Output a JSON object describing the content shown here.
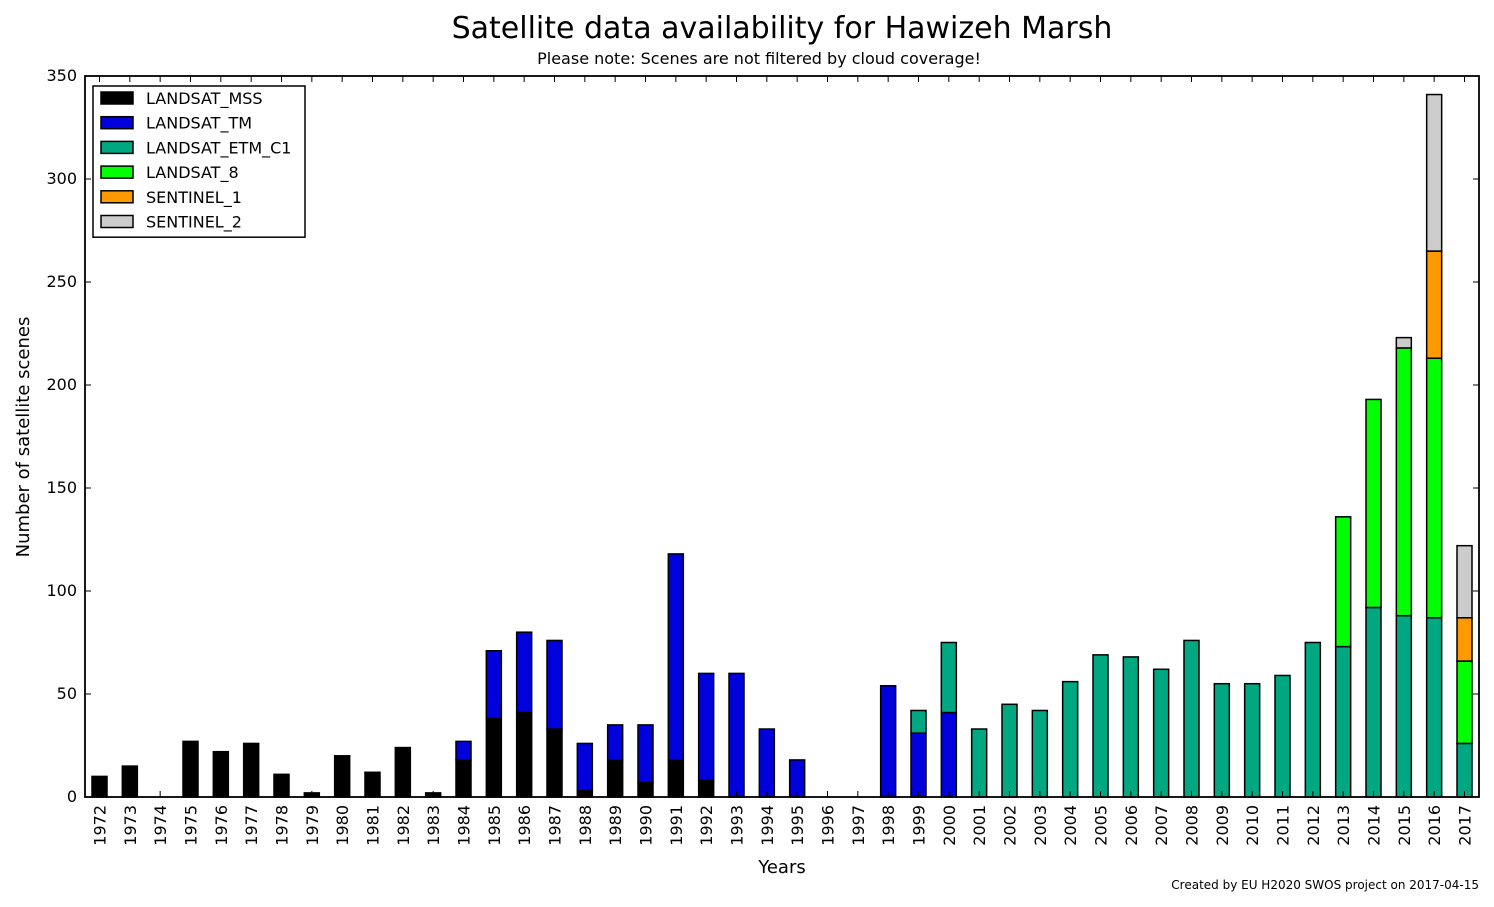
{
  "chart_data": {
    "type": "bar",
    "stacked": true,
    "title": "Satellite data availability for Hawizeh Marsh",
    "subtitle": "Please note: Scenes are not filtered by cloud coverage!",
    "xlabel": "Years",
    "ylabel": "Number of satellite scenes",
    "footnote": "Created by EU H2020 SWOS project on 2017-04-15",
    "ylim": [
      0,
      350
    ],
    "yticks": [
      0,
      50,
      100,
      150,
      200,
      250,
      300,
      350
    ],
    "grid": false,
    "legend_position": "top-left",
    "categories": [
      "1972",
      "1973",
      "1974",
      "1975",
      "1976",
      "1977",
      "1978",
      "1979",
      "1980",
      "1981",
      "1982",
      "1983",
      "1984",
      "1985",
      "1986",
      "1987",
      "1988",
      "1989",
      "1990",
      "1991",
      "1992",
      "1993",
      "1994",
      "1995",
      "1996",
      "1997",
      "1998",
      "1999",
      "2000",
      "2001",
      "2002",
      "2003",
      "2004",
      "2005",
      "2006",
      "2007",
      "2008",
      "2009",
      "2010",
      "2011",
      "2012",
      "2013",
      "2014",
      "2015",
      "2016",
      "2017"
    ],
    "series": [
      {
        "name": "LANDSAT_MSS",
        "color": "#000000",
        "values": [
          10,
          15,
          0,
          27,
          22,
          26,
          11,
          2,
          20,
          12,
          24,
          2,
          18,
          38,
          41,
          33,
          3,
          18,
          7,
          18,
          8,
          0,
          0,
          0,
          0,
          0,
          0,
          0,
          0,
          0,
          0,
          0,
          0,
          0,
          0,
          0,
          0,
          0,
          0,
          0,
          0,
          0,
          0,
          0,
          0,
          0
        ]
      },
      {
        "name": "LANDSAT_TM",
        "color": "#0000dd",
        "values": [
          0,
          0,
          0,
          0,
          0,
          0,
          0,
          0,
          0,
          0,
          0,
          0,
          9,
          33,
          39,
          43,
          23,
          17,
          28,
          100,
          52,
          60,
          33,
          18,
          0,
          0,
          54,
          31,
          41,
          0,
          0,
          0,
          0,
          0,
          0,
          0,
          0,
          0,
          0,
          0,
          0,
          0,
          0,
          0,
          0,
          0
        ]
      },
      {
        "name": "LANDSAT_ETM_C1",
        "color": "#00a882",
        "values": [
          0,
          0,
          0,
          0,
          0,
          0,
          0,
          0,
          0,
          0,
          0,
          0,
          0,
          0,
          0,
          0,
          0,
          0,
          0,
          0,
          0,
          0,
          0,
          0,
          0,
          0,
          0,
          11,
          34,
          33,
          45,
          42,
          56,
          69,
          68,
          62,
          76,
          55,
          55,
          59,
          75,
          73,
          92,
          88,
          87,
          26
        ]
      },
      {
        "name": "LANDSAT_8",
        "color": "#00ff00",
        "values": [
          0,
          0,
          0,
          0,
          0,
          0,
          0,
          0,
          0,
          0,
          0,
          0,
          0,
          0,
          0,
          0,
          0,
          0,
          0,
          0,
          0,
          0,
          0,
          0,
          0,
          0,
          0,
          0,
          0,
          0,
          0,
          0,
          0,
          0,
          0,
          0,
          0,
          0,
          0,
          0,
          0,
          63,
          101,
          130,
          126,
          40
        ]
      },
      {
        "name": "SENTINEL_1",
        "color": "#ff9900",
        "values": [
          0,
          0,
          0,
          0,
          0,
          0,
          0,
          0,
          0,
          0,
          0,
          0,
          0,
          0,
          0,
          0,
          0,
          0,
          0,
          0,
          0,
          0,
          0,
          0,
          0,
          0,
          0,
          0,
          0,
          0,
          0,
          0,
          0,
          0,
          0,
          0,
          0,
          0,
          0,
          0,
          0,
          0,
          0,
          0,
          52,
          21
        ]
      },
      {
        "name": "SENTINEL_2",
        "color": "#cccccc",
        "values": [
          0,
          0,
          0,
          0,
          0,
          0,
          0,
          0,
          0,
          0,
          0,
          0,
          0,
          0,
          0,
          0,
          0,
          0,
          0,
          0,
          0,
          0,
          0,
          0,
          0,
          0,
          0,
          0,
          0,
          0,
          0,
          0,
          0,
          0,
          0,
          0,
          0,
          0,
          0,
          0,
          0,
          0,
          0,
          5,
          76,
          35
        ]
      }
    ]
  }
}
